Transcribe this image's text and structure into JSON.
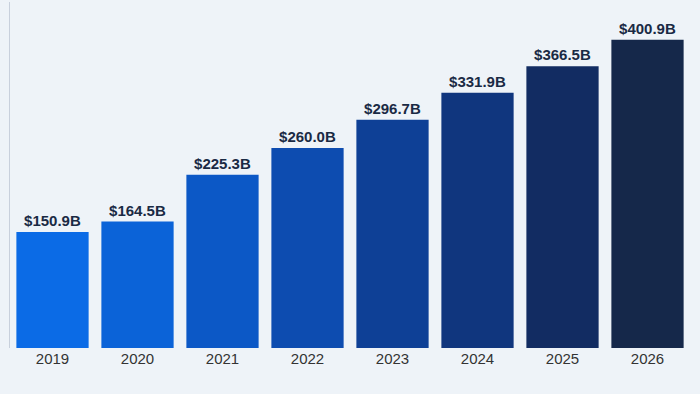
{
  "chart_data": {
    "type": "bar",
    "categories": [
      "2019",
      "2020",
      "2021",
      "2022",
      "2023",
      "2024",
      "2025",
      "2026"
    ],
    "values": [
      150.9,
      164.5,
      225.3,
      260.0,
      296.7,
      331.9,
      366.5,
      400.9
    ],
    "value_labels": [
      "$150.9B",
      "$164.5B",
      "$225.3B",
      "$260.0B",
      "$296.7B",
      "$331.9B",
      "$366.5B",
      "$400.9B"
    ],
    "colors": [
      "#0b6be6",
      "#0b63d8",
      "#0c58c6",
      "#0d4cb0",
      "#0e4096",
      "#10367e",
      "#122c62",
      "#15284a"
    ],
    "ylim": [
      0,
      450
    ],
    "grid": false,
    "data_labels": true,
    "tick_labels": "x"
  }
}
